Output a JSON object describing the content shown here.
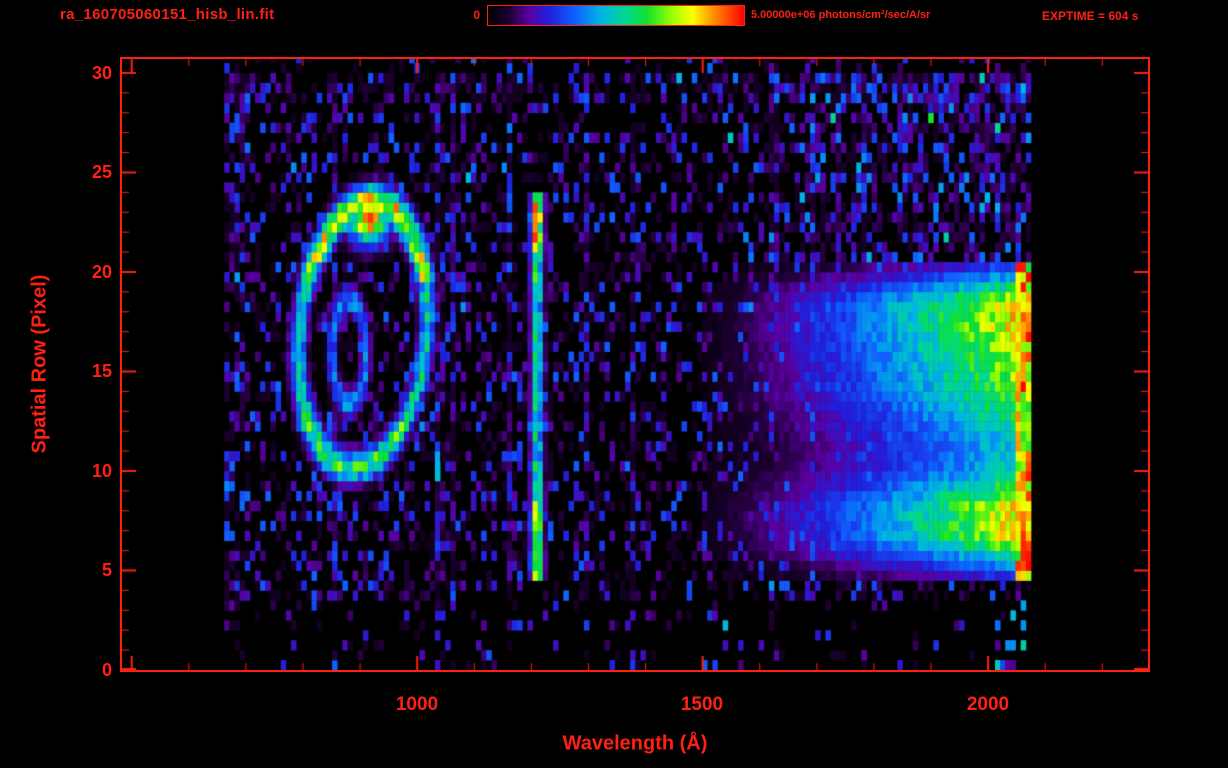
{
  "header": {
    "filename": "ra_160705060151_hisb_lin.fit",
    "colorbar_min_label": "0",
    "colorbar_max_label": "5.00000e+06 photons/cm²/sec/A/sr",
    "exptime_label": "EXPTIME = 604 s"
  },
  "accent_color": "#ff2012",
  "chart_data": {
    "type": "heatmap",
    "title": "ra_160705060151_hisb_lin.fit",
    "xlabel": "Wavelength (Å)",
    "ylabel": "Spatial Row (Pixel)",
    "xlim": [
      483,
      2280
    ],
    "ylim": [
      0,
      30.7
    ],
    "x_tick_values": [
      1000,
      1500,
      2000
    ],
    "x_tick_labels": [
      "1000",
      "1500",
      "2000"
    ],
    "x_major_step": 500,
    "x_minor_step": 100,
    "y_tick_values": [
      0,
      5,
      10,
      15,
      20,
      25,
      30
    ],
    "y_tick_labels": [
      "0",
      "5",
      "10",
      "15",
      "20",
      "25",
      "30"
    ],
    "y_minor_step": 1,
    "legend_position": "top",
    "grid": false,
    "colorbar": {
      "min_value": 0,
      "max_value": 5000000,
      "units": "photons/cm²/sec/A/sr",
      "exposure_seconds": 604
    },
    "colormap": [
      [
        0.0,
        "#000000"
      ],
      [
        0.08,
        "#1c0030"
      ],
      [
        0.16,
        "#5a00a0"
      ],
      [
        0.24,
        "#2020dd"
      ],
      [
        0.34,
        "#1060ff"
      ],
      [
        0.44,
        "#00b4e6"
      ],
      [
        0.54,
        "#00d890"
      ],
      [
        0.62,
        "#10e030"
      ],
      [
        0.72,
        "#9aff00"
      ],
      [
        0.8,
        "#ffff00"
      ],
      [
        0.88,
        "#ff9000"
      ],
      [
        1.0,
        "#ff0000"
      ]
    ],
    "render": {
      "seed": 20160705,
      "cell_wave": 9,
      "cell_row": 0.5,
      "data_wave_min": 662,
      "data_wave_max": 2075,
      "noise": {
        "mid_row_prob": 0.34,
        "low_row_max": 3.6,
        "low_row_prob": 0.1,
        "top_row_min": 28.5,
        "top_row_prob": 0.5,
        "col_boost_prob": 0.07,
        "left_col_wave_max": 700,
        "left_col_factor": 2.0
      },
      "features": {
        "ring": {
          "wave_center": 900,
          "row_center": 16.9,
          "wave_radius": 112,
          "row_radius": 6.7,
          "shear": 2.5,
          "width": 0.13,
          "intensity": 0.52,
          "top_arc_boost": 1.45,
          "bottom_arc_boost": 1.15,
          "top_blob": {
            "wave": 910,
            "row": 22.6,
            "wave_sigma": 26,
            "row_sigma": 0.9,
            "intensity": 0.85
          }
        },
        "inner_arc": {
          "wave_center": 876,
          "row_center": 16.0,
          "wave_radius": 30,
          "row_radius": 2.6,
          "width": 0.3,
          "intensity": 0.4
        },
        "emission_line": {
          "wave": 1205,
          "wave_sigma": 8,
          "row_min": 4.3,
          "row_max": 24.1,
          "base_intensity": 0.46,
          "top_hump": {
            "row": 22.4,
            "sigma": 1.4,
            "amp": 0.3
          },
          "bottom_hump": {
            "row": 6.4,
            "sigma": 1.6,
            "amp": 0.22
          }
        },
        "continuum": {
          "wave_start": 1440,
          "wave_full": 2045,
          "row_min": 4.6,
          "row_max": 20.4,
          "humps": [
            [
              7.3,
              1.7,
              1.0
            ],
            [
              14.8,
              1.9,
              0.75
            ],
            [
              18.2,
              1.5,
              0.85
            ],
            [
              11.2,
              1.9,
              0.4
            ]
          ],
          "base": 0.5,
          "ramp_exp": 1.2,
          "ramp_gain": 0.2,
          "noise_amp": 0.22,
          "upper_noise_gain": 0.9
        },
        "edge_column": {
          "wave_min": 2044,
          "wave_max": 2067,
          "intensity_min": 0.6,
          "intensity_spread": 0.32,
          "red_prob": 0.15,
          "red_rows": [
            [
              4.9,
              6.8
            ],
            [
              19.2,
              20.5
            ]
          ],
          "red_row_prob": 0.55
        },
        "corner_specks": {
          "wave_min": 2005,
          "wave_max": 2062,
          "row_max": 3.6,
          "prob": 0.3,
          "intensity_min": 0.22,
          "intensity_spread": 0.3
        }
      }
    }
  }
}
